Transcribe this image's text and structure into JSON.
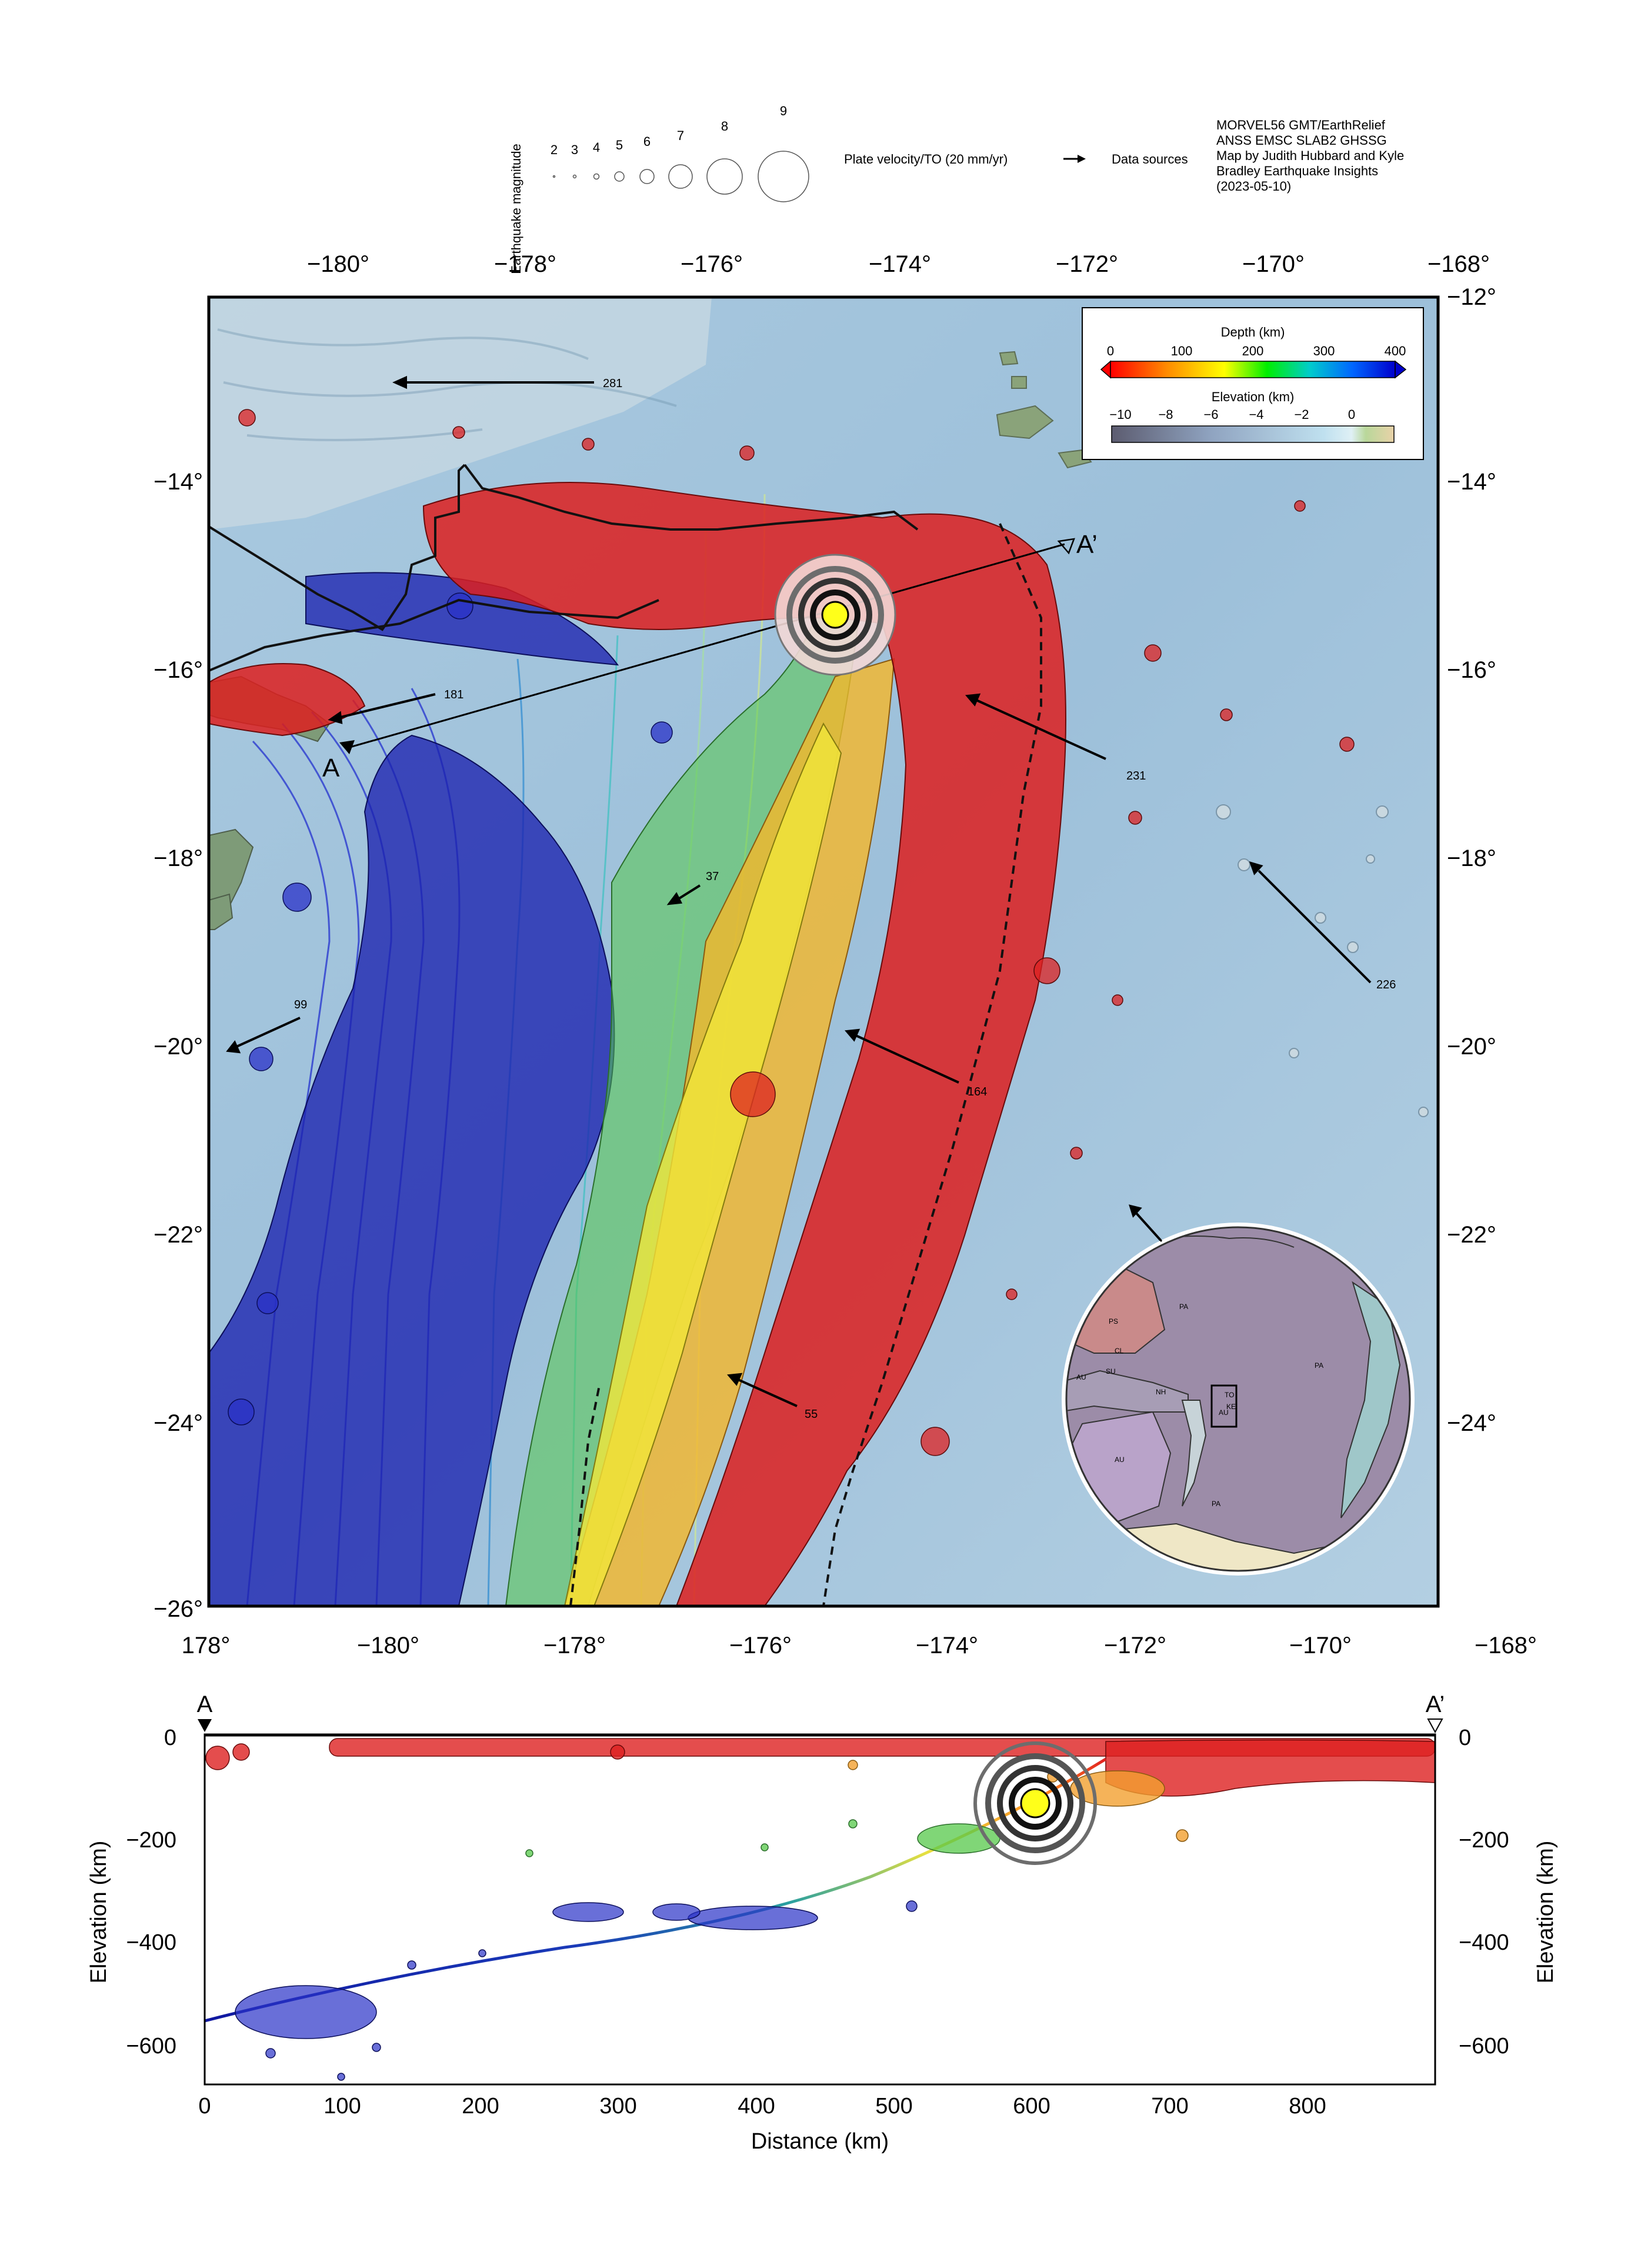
{
  "header": {
    "magnitude_axis_label": "Earthquake magnitude",
    "magnitudes": [
      "2",
      "3",
      "4",
      "5",
      "6",
      "7",
      "8",
      "9"
    ],
    "plate_velocity_label": "Plate velocity/TO (20 mm/yr)",
    "data_sources_label": "Data sources",
    "credits": [
      "MORVEL56 GMT/EarthRelief",
      "ANSS EMSC SLAB2 GHSSG",
      "Map by Judith Hubbard and Kyle",
      "Bradley Earthquake Insights",
      "(2023-05-10)"
    ]
  },
  "map": {
    "top_lon_ticks": [
      "−180°",
      "−178°",
      "−176°",
      "−174°",
      "−172°",
      "−170°",
      "−168°"
    ],
    "bottom_lon_ticks": [
      "178°",
      "−180°",
      "−178°",
      "−176°",
      "−174°",
      "−172°",
      "−170°",
      "−168°"
    ],
    "lat_ticks": [
      "−12°",
      "−14°",
      "−16°",
      "−18°",
      "−20°",
      "−22°",
      "−24°",
      "−26°"
    ],
    "velocity_labels": [
      "281",
      "181",
      "231",
      "37",
      "226",
      "99",
      "164",
      "55"
    ],
    "profile_start_label": "A",
    "profile_end_label": "A’",
    "legend": {
      "depth_title": "Depth (km)",
      "depth_ticks": [
        "0",
        "100",
        "200",
        "300",
        "400"
      ],
      "elevation_title": "Elevation (km)",
      "elevation_ticks": [
        "−10",
        "−8",
        "−6",
        "−4",
        "−2",
        "0"
      ]
    },
    "inset_plate_labels": [
      "PA",
      "PA",
      "PA",
      "PS",
      "CL",
      "AU",
      "AU",
      "NH",
      "SU",
      "TO",
      "KE",
      "AU"
    ],
    "colors": {
      "ocean": "#9fc3dc",
      "land": "#7fa17a",
      "shallow": "#d62020",
      "intermediate": "#f2e020",
      "deep": "#1f2aa8",
      "inset_fill": "#9c8ca8"
    }
  },
  "profile": {
    "start_label": "A",
    "end_label": "A’",
    "y_ticks": [
      "0",
      "−200",
      "−400",
      "−600"
    ],
    "x_ticks": [
      "0",
      "100",
      "200",
      "300",
      "400",
      "500",
      "600",
      "700",
      "800"
    ],
    "y_axis_label": "Elevation (km)",
    "x_axis_label": "Distance (km)"
  }
}
